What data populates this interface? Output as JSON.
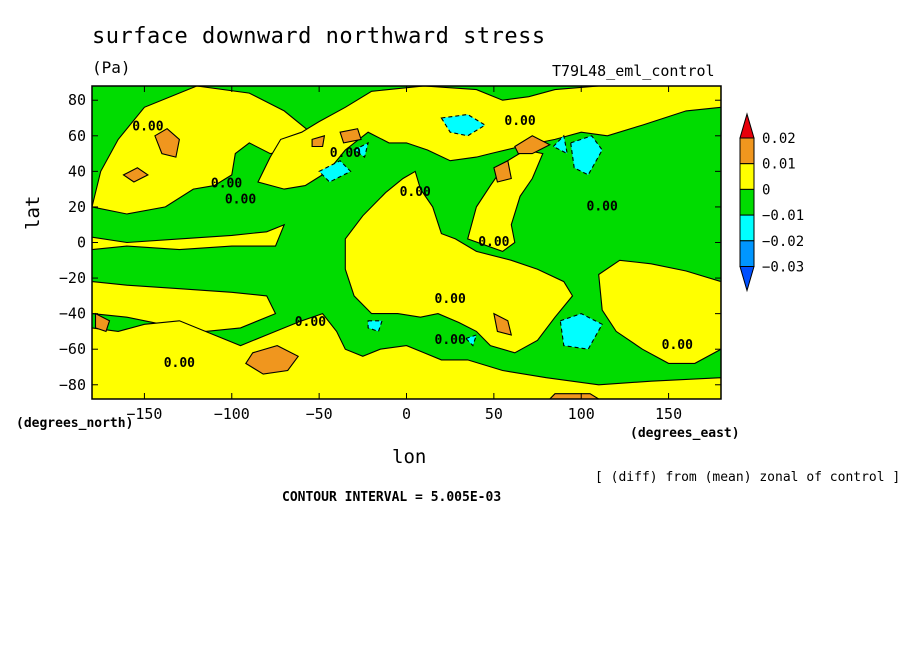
{
  "chart_data": {
    "type": "heatmap",
    "title": "surface downward northward stress",
    "units": "(Pa)",
    "run_label": "T79L48_eml_control",
    "xlabel": "lon",
    "ylabel": "lat",
    "x_units": "(degrees_east)",
    "y_units": "(degrees_north)",
    "x_ticks": [
      -150,
      -100,
      -50,
      0,
      50,
      100,
      150
    ],
    "y_ticks": [
      80,
      60,
      40,
      20,
      0,
      -20,
      -40,
      -60,
      -80
    ],
    "xlim": [
      -180,
      180
    ],
    "ylim": [
      -88,
      88
    ],
    "note": "[ (diff) from (mean) zonal of control ]",
    "contour_interval": "CONTOUR INTERVAL = 5.005E-03",
    "contour_label": "0.00",
    "colorbar": {
      "levels": [
        "0.02",
        "0.01",
        "0",
        "−0.01",
        "−0.02",
        "−0.03"
      ],
      "colors": [
        "#e8000b",
        "#f0961e",
        "#ffff00",
        "#00dc00",
        "#00ffff",
        "#0096ff",
        "#0050ff"
      ]
    },
    "regions": [
      {
        "level": "-0.01",
        "polygon": [
          [
            -180,
            88
          ],
          [
            180,
            88
          ],
          [
            180,
            -88
          ],
          [
            -180,
            -88
          ]
        ]
      },
      {
        "level": "0",
        "polygon": [
          [
            -180,
            20
          ],
          [
            -175,
            40
          ],
          [
            -165,
            58
          ],
          [
            -150,
            76
          ],
          [
            -120,
            88
          ],
          [
            -90,
            84
          ],
          [
            -70,
            74
          ],
          [
            -55,
            62
          ],
          [
            -60,
            52
          ],
          [
            -78,
            50
          ],
          [
            -90,
            56
          ],
          [
            -98,
            50
          ],
          [
            -100,
            38
          ],
          [
            -110,
            32
          ],
          [
            -122,
            30
          ],
          [
            -138,
            20
          ],
          [
            -160,
            16
          ]
        ]
      },
      {
        "level": "0",
        "polygon": [
          [
            -180,
            3
          ],
          [
            -160,
            0
          ],
          [
            -130,
            2
          ],
          [
            -100,
            4
          ],
          [
            -80,
            6
          ],
          [
            -70,
            10
          ],
          [
            -75,
            -2
          ],
          [
            -100,
            -2
          ],
          [
            -130,
            -4
          ],
          [
            -160,
            -2
          ],
          [
            -180,
            -4
          ]
        ]
      },
      {
        "level": "0",
        "polygon": [
          [
            -85,
            34
          ],
          [
            -82,
            40
          ],
          [
            -78,
            48
          ],
          [
            -72,
            58
          ],
          [
            -60,
            62
          ],
          [
            -50,
            68
          ],
          [
            -35,
            76
          ],
          [
            -20,
            85
          ],
          [
            10,
            88
          ],
          [
            40,
            86
          ],
          [
            55,
            80
          ],
          [
            70,
            82
          ],
          [
            85,
            86
          ],
          [
            110,
            88
          ],
          [
            150,
            88
          ],
          [
            180,
            88
          ],
          [
            180,
            76
          ],
          [
            160,
            74
          ],
          [
            135,
            66
          ],
          [
            115,
            60
          ],
          [
            100,
            62
          ],
          [
            85,
            58
          ],
          [
            65,
            54
          ],
          [
            48,
            50
          ],
          [
            40,
            48
          ],
          [
            25,
            46
          ],
          [
            12,
            52
          ],
          [
            0,
            56
          ],
          [
            -10,
            56
          ],
          [
            -22,
            62
          ],
          [
            -35,
            52
          ],
          [
            -45,
            40
          ],
          [
            -58,
            32
          ],
          [
            -70,
            30
          ]
        ]
      },
      {
        "level": "0",
        "polygon": [
          [
            -35,
            2
          ],
          [
            -25,
            15
          ],
          [
            -12,
            28
          ],
          [
            -2,
            36
          ],
          [
            5,
            40
          ],
          [
            8,
            30
          ],
          [
            15,
            20
          ],
          [
            20,
            5
          ],
          [
            28,
            2
          ],
          [
            40,
            -5
          ],
          [
            60,
            -10
          ],
          [
            75,
            -15
          ],
          [
            90,
            -22
          ],
          [
            95,
            -30
          ],
          [
            85,
            -42
          ],
          [
            75,
            -55
          ],
          [
            62,
            -62
          ],
          [
            48,
            -58
          ],
          [
            40,
            -50
          ],
          [
            30,
            -45
          ],
          [
            18,
            -40
          ],
          [
            8,
            -42
          ],
          [
            -5,
            -40
          ],
          [
            -20,
            -40
          ],
          [
            -30,
            -30
          ],
          [
            -35,
            -15
          ]
        ]
      },
      {
        "level": "0",
        "polygon": [
          [
            35,
            2
          ],
          [
            40,
            20
          ],
          [
            48,
            32
          ],
          [
            58,
            46
          ],
          [
            68,
            52
          ],
          [
            78,
            50
          ],
          [
            72,
            36
          ],
          [
            65,
            26
          ],
          [
            60,
            10
          ],
          [
            62,
            0
          ],
          [
            55,
            -5
          ]
        ]
      },
      {
        "level": "0",
        "polygon": [
          [
            110,
            -18
          ],
          [
            122,
            -10
          ],
          [
            140,
            -12
          ],
          [
            160,
            -16
          ],
          [
            180,
            -22
          ],
          [
            180,
            -60
          ],
          [
            165,
            -68
          ],
          [
            150,
            -68
          ],
          [
            135,
            -60
          ],
          [
            120,
            -50
          ],
          [
            112,
            -38
          ]
        ]
      },
      {
        "level": "0",
        "polygon": [
          [
            -180,
            -22
          ],
          [
            -160,
            -24
          ],
          [
            -130,
            -26
          ],
          [
            -100,
            -28
          ],
          [
            -80,
            -30
          ],
          [
            -75,
            -40
          ],
          [
            -95,
            -48
          ],
          [
            -115,
            -50
          ],
          [
            -140,
            -46
          ],
          [
            -160,
            -42
          ],
          [
            -180,
            -40
          ]
        ]
      },
      {
        "level": "0",
        "polygon": [
          [
            -180,
            -48
          ],
          [
            -165,
            -50
          ],
          [
            -150,
            -46
          ],
          [
            -130,
            -44
          ],
          [
            -110,
            -52
          ],
          [
            -95,
            -58
          ],
          [
            -75,
            -50
          ],
          [
            -60,
            -44
          ],
          [
            -48,
            -40
          ],
          [
            -40,
            -50
          ],
          [
            -35,
            -60
          ],
          [
            -25,
            -64
          ],
          [
            -15,
            -60
          ],
          [
            0,
            -58
          ],
          [
            10,
            -62
          ],
          [
            20,
            -66
          ],
          [
            35,
            -66
          ],
          [
            55,
            -72
          ],
          [
            80,
            -76
          ],
          [
            110,
            -80
          ],
          [
            140,
            -78
          ],
          [
            180,
            -76
          ],
          [
            180,
            -88
          ],
          [
            -180,
            -88
          ]
        ]
      },
      {
        "level": "0.01",
        "polygon": [
          [
            -144,
            60
          ],
          [
            -137,
            64
          ],
          [
            -130,
            58
          ],
          [
            -132,
            48
          ],
          [
            -140,
            50
          ]
        ]
      },
      {
        "level": "0.01",
        "polygon": [
          [
            -162,
            38
          ],
          [
            -154,
            42
          ],
          [
            -148,
            38
          ],
          [
            -156,
            34
          ]
        ]
      },
      {
        "level": "0.01",
        "polygon": [
          [
            -54,
            58
          ],
          [
            -47,
            60
          ],
          [
            -48,
            54
          ],
          [
            -54,
            54
          ]
        ]
      },
      {
        "level": "0.01",
        "polygon": [
          [
            -38,
            62
          ],
          [
            -28,
            64
          ],
          [
            -26,
            58
          ],
          [
            -36,
            56
          ]
        ]
      },
      {
        "level": "0.01",
        "polygon": [
          [
            62,
            54
          ],
          [
            72,
            60
          ],
          [
            82,
            55
          ],
          [
            72,
            50
          ],
          [
            64,
            50
          ]
        ]
      },
      {
        "level": "0.01",
        "polygon": [
          [
            50,
            42
          ],
          [
            58,
            46
          ],
          [
            60,
            36
          ],
          [
            52,
            34
          ]
        ]
      },
      {
        "level": "0.01",
        "polygon": [
          [
            -178,
            -40
          ],
          [
            -170,
            -44
          ],
          -172,
          -50,
          [
            -178,
            -48
          ]
        ]
      },
      {
        "level": "0.01",
        "polygon": [
          [
            -88,
            -62
          ],
          [
            -74,
            -58
          ],
          [
            -62,
            -64
          ],
          [
            -68,
            -72
          ],
          [
            -82,
            -74
          ],
          [
            -92,
            -68
          ]
        ]
      },
      {
        "level": "0.01",
        "polygon": [
          [
            50,
            -40
          ],
          [
            58,
            -44
          ],
          [
            60,
            -52
          ],
          [
            52,
            -50
          ]
        ]
      },
      {
        "level": "0.01",
        "polygon": [
          [
            85,
            -85
          ],
          [
            105,
            -85
          ],
          [
            110,
            -88
          ],
          [
            82,
            -88
          ]
        ]
      },
      {
        "level": "-0.02",
        "polygon": [
          [
            20,
            70
          ],
          [
            35,
            72
          ],
          [
            45,
            66
          ],
          [
            35,
            60
          ],
          [
            25,
            62
          ]
        ]
      },
      {
        "level": "-0.02",
        "polygon": [
          [
            -50,
            40
          ],
          [
            -38,
            46
          ],
          -32,
          40,
          [
            -44,
            34
          ]
        ]
      },
      {
        "level": "-0.02",
        "polygon": [
          [
            -30,
            52
          ],
          [
            -22,
            56
          ],
          [
            -24,
            48
          ]
        ]
      },
      {
        "level": "-0.02",
        "polygon": [
          [
            94,
            56
          ],
          [
            106,
            60
          ],
          [
            112,
            52
          ],
          [
            104,
            38
          ],
          [
            96,
            42
          ]
        ]
      },
      {
        "level": "-0.02",
        "polygon": [
          [
            84,
            54
          ],
          [
            90,
            60
          ],
          [
            92,
            50
          ]
        ]
      },
      {
        "level": "-0.02",
        "polygon": [
          [
            88,
            -44
          ],
          [
            100,
            -40
          ],
          [
            112,
            -46
          ],
          [
            104,
            -60
          ],
          [
            90,
            -58
          ]
        ]
      },
      {
        "level": "-0.02",
        "polygon": [
          [
            -22,
            -44
          ],
          [
            -14,
            -44
          ],
          [
            -16,
            -50
          ],
          [
            -22,
            -48
          ]
        ]
      },
      {
        "level": "-0.02",
        "polygon": [
          [
            34,
            -54
          ],
          [
            40,
            -52
          ],
          [
            38,
            -58
          ]
        ]
      }
    ],
    "labels": [
      {
        "text": "0.00",
        "lon": -148,
        "lat": 65
      },
      {
        "text": "0.00",
        "lon": -35,
        "lat": 50
      },
      {
        "text": "0.00",
        "lon": -103,
        "lat": 33
      },
      {
        "text": "0.00",
        "lon": -95,
        "lat": 24
      },
      {
        "text": "0.00",
        "lon": 5,
        "lat": 28
      },
      {
        "text": "0.00",
        "lon": 65,
        "lat": 68
      },
      {
        "text": "0.00",
        "lon": 112,
        "lat": 20
      },
      {
        "text": "0.00",
        "lon": 50,
        "lat": 0
      },
      {
        "text": "0.00",
        "lon": 25,
        "lat": -32
      },
      {
        "text": "0.00",
        "lon": -55,
        "lat": -45
      },
      {
        "text": "0.00",
        "lon": 25,
        "lat": -55
      },
      {
        "text": "0.00",
        "lon": -130,
        "lat": -68
      },
      {
        "text": "0.00",
        "lon": 155,
        "lat": -58
      }
    ]
  }
}
